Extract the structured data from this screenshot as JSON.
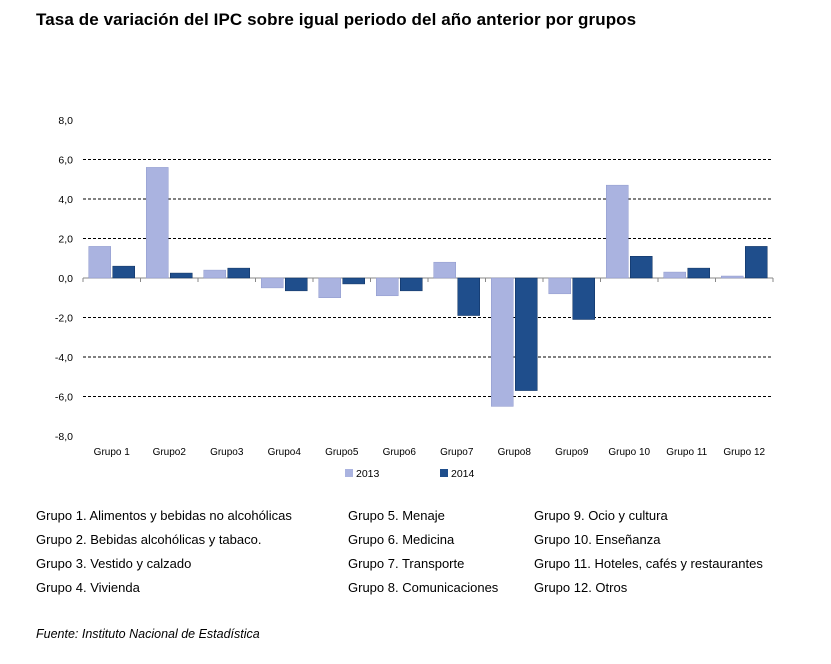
{
  "title": "Tasa de variación del IPC sobre igual periodo del año anterior por grupos",
  "chart_data": {
    "type": "bar",
    "categories": [
      "Grupo 1",
      "Grupo2",
      "Grupo3",
      "Grupo4",
      "Grupo5",
      "Grupo6",
      "Grupo7",
      "Grupo8",
      "Grupo9",
      "Grupo 10",
      "Grupo 11",
      "Grupo 12"
    ],
    "series": [
      {
        "name": "2013",
        "color": "#aab3e0",
        "values": [
          1.6,
          5.6,
          0.4,
          -0.5,
          -1.0,
          -0.9,
          0.8,
          -6.5,
          -0.8,
          4.7,
          0.3,
          0.1
        ]
      },
      {
        "name": "2014",
        "color": "#1f4e8c",
        "values": [
          0.6,
          0.25,
          0.5,
          -0.65,
          -0.3,
          -0.65,
          -1.9,
          -5.7,
          -2.1,
          1.1,
          0.5,
          1.6
        ]
      }
    ],
    "ylim": [
      -8,
      8
    ],
    "yticks": [
      "-8,0",
      "-6,0",
      "-4,0",
      "-2,0",
      "0,0",
      "2,0",
      "4,0",
      "6,0",
      "8,0"
    ],
    "ytick_values": [
      -8,
      -6,
      -4,
      -2,
      0,
      2,
      4,
      6,
      8
    ],
    "grid": true,
    "legend_position": "bottom"
  },
  "group_legend": {
    "col1": [
      "Grupo 1. Alimentos y bebidas no alcohólicas",
      "Grupo 2. Bebidas alcohólicas y  tabaco.",
      "Grupo 3. Vestido y calzado",
      "Grupo 4. Vivienda"
    ],
    "col2": [
      "Grupo 5. Menaje",
      "Grupo 6. Medicina",
      "Grupo 7. Transporte",
      "Grupo 8. Comunicaciones"
    ],
    "col3": [
      "Grupo 9. Ocio y cultura",
      "Grupo 10. Enseñanza",
      "Grupo 11. Hoteles, cafés y restaurantes",
      "Grupo 12. Otros"
    ]
  },
  "source": "Fuente: Instituto Nacional de Estadística"
}
